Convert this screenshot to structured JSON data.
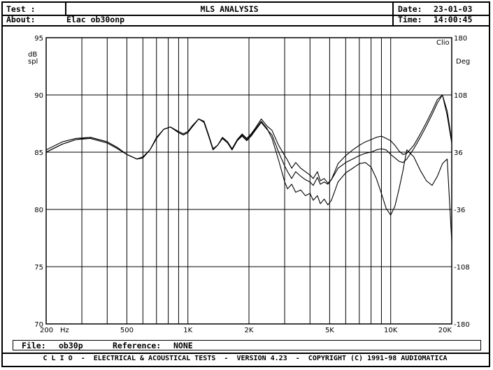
{
  "header": {
    "test_label": "Test :",
    "title": "MLS ANALYSIS",
    "date_label": "Date:",
    "date_value": "23-01-03",
    "about_label": "About:",
    "about_value": "Elac ob30onp",
    "time_label": "Time:",
    "time_value": "14:00:45"
  },
  "file_bar": {
    "file_label": "File:",
    "file_value": "ob30p",
    "reference_label": "Reference:",
    "reference_value": "NONE"
  },
  "footer": {
    "brand": "C L I O",
    "text": "-  ELECTRICAL & ACOUSTICAL TESTS  -  VERSION 4.23  -  COPYRIGHT (C) 1991-98 AUDIOMATICA"
  },
  "chart_data": {
    "type": "line",
    "title": "",
    "brand_mark": "Clio",
    "xlabel": "Hz",
    "ylabel": "dB spl",
    "y2label": "Deg",
    "xscale": "log",
    "xlim": [
      200,
      20000
    ],
    "ylim": [
      70,
      95
    ],
    "y2lim": [
      -180,
      180
    ],
    "x_ticks": [
      {
        "value": 200,
        "label": "200"
      },
      {
        "value": 500,
        "label": "500"
      },
      {
        "value": 1000,
        "label": "1K"
      },
      {
        "value": 2000,
        "label": "2K"
      },
      {
        "value": 5000,
        "label": "5K"
      },
      {
        "value": 10000,
        "label": "10K"
      },
      {
        "value": 20000,
        "label": "20K"
      }
    ],
    "x_gridlines": [
      300,
      400,
      500,
      600,
      700,
      800,
      900,
      1000,
      2000,
      3000,
      4000,
      5000,
      6000,
      7000,
      8000,
      9000,
      10000,
      20000
    ],
    "y_ticks": [
      70,
      75,
      80,
      85,
      90,
      95
    ],
    "y2_ticks": [
      -180,
      -108,
      -36,
      36,
      108,
      180
    ],
    "grid": true,
    "series": [
      {
        "x": [
          200,
          240,
          280,
          330,
          400,
          450,
          500,
          560,
          600,
          650,
          700,
          760,
          820,
          900,
          950,
          1000,
          1050,
          1130,
          1200,
          1260,
          1330,
          1400,
          1480,
          1570,
          1650,
          1750,
          1850,
          1950,
          2050,
          2150,
          2300,
          2450,
          2600,
          2800,
          3000,
          3100,
          3250,
          3400,
          3600,
          3800,
          4000,
          4150,
          4350,
          4500,
          4700,
          4900,
          5100,
          5300,
          5500,
          6000,
          6500,
          7000,
          7500,
          8000,
          8500,
          9000,
          9500,
          10000,
          10500,
          11000,
          11500,
          12000,
          13000,
          14000,
          15000,
          16000,
          17000,
          18000,
          19000,
          20000
        ],
        "values": [
          85.2,
          85.9,
          86.2,
          86.3,
          85.9,
          85.4,
          84.8,
          84.4,
          84.5,
          85.2,
          86.3,
          87.0,
          87.2,
          86.8,
          86.6,
          86.8,
          87.3,
          87.9,
          87.7,
          86.6,
          85.3,
          85.6,
          86.3,
          85.9,
          85.3,
          86.1,
          86.6,
          86.2,
          86.6,
          87.1,
          87.9,
          87.3,
          86.9,
          85.6,
          84.7,
          84.3,
          83.6,
          84.1,
          83.6,
          83.3,
          83.0,
          82.7,
          83.3,
          82.5,
          82.7,
          82.3,
          82.6,
          83.3,
          84.0,
          84.7,
          85.2,
          85.6,
          85.9,
          86.1,
          86.3,
          86.4,
          86.2,
          86.0,
          85.6,
          85.1,
          84.8,
          84.9,
          85.6,
          86.6,
          87.6,
          88.6,
          89.6,
          90.0,
          88.2,
          85.8
        ]
      },
      {
        "x": [
          200,
          240,
          280,
          330,
          400,
          450,
          500,
          560,
          600,
          650,
          700,
          760,
          820,
          900,
          950,
          1000,
          1050,
          1130,
          1200,
          1260,
          1330,
          1400,
          1480,
          1570,
          1650,
          1750,
          1850,
          1950,
          2050,
          2150,
          2300,
          2450,
          2600,
          2800,
          3000,
          3100,
          3250,
          3400,
          3600,
          3800,
          4000,
          4150,
          4350,
          4500,
          4700,
          4900,
          5100,
          5300,
          5500,
          6000,
          6500,
          7000,
          7500,
          8000,
          8500,
          9000,
          9500,
          10000,
          10500,
          11000,
          11500,
          12000,
          13000,
          14000,
          15000,
          16000,
          17000,
          18000,
          19000,
          20000
        ],
        "values": [
          85.0,
          85.7,
          86.1,
          86.2,
          85.8,
          85.3,
          84.8,
          84.4,
          84.5,
          85.2,
          86.2,
          87.0,
          87.2,
          86.7,
          86.5,
          86.7,
          87.2,
          87.9,
          87.6,
          86.5,
          85.2,
          85.6,
          86.2,
          85.8,
          85.2,
          86.0,
          86.4,
          86.0,
          86.4,
          86.9,
          87.6,
          87.0,
          86.5,
          85.0,
          83.8,
          83.3,
          82.7,
          83.3,
          82.9,
          82.6,
          82.4,
          82.1,
          82.8,
          82.2,
          82.4,
          82.2,
          82.6,
          83.1,
          83.6,
          84.1,
          84.4,
          84.7,
          84.9,
          85.0,
          85.2,
          85.3,
          85.2,
          84.8,
          84.5,
          84.2,
          84.1,
          84.4,
          85.3,
          86.3,
          87.3,
          88.3,
          89.3,
          90.0,
          88.6,
          86.0
        ]
      },
      {
        "x": [
          200,
          240,
          280,
          330,
          400,
          450,
          500,
          560,
          600,
          650,
          700,
          760,
          820,
          900,
          950,
          1000,
          1050,
          1130,
          1200,
          1260,
          1330,
          1400,
          1480,
          1570,
          1650,
          1750,
          1850,
          1950,
          2050,
          2150,
          2300,
          2450,
          2600,
          2800,
          3000,
          3100,
          3250,
          3400,
          3600,
          3800,
          4000,
          4150,
          4350,
          4500,
          4700,
          4900,
          5100,
          5300,
          5500,
          6000,
          6500,
          7000,
          7500,
          8000,
          8500,
          9000,
          9500,
          10000,
          10500,
          11000,
          11500,
          12000,
          13000,
          14000,
          15000,
          16000,
          17000,
          18000,
          19000,
          20000
        ],
        "values": [
          85.0,
          85.7,
          86.1,
          86.3,
          85.9,
          85.4,
          84.8,
          84.4,
          84.6,
          85.2,
          86.2,
          87.0,
          87.2,
          86.8,
          86.6,
          86.8,
          87.2,
          87.9,
          87.7,
          86.6,
          85.3,
          85.6,
          86.2,
          85.9,
          85.2,
          86.0,
          86.5,
          86.1,
          86.5,
          87.0,
          87.7,
          87.1,
          86.2,
          84.3,
          82.4,
          81.8,
          82.2,
          81.5,
          81.7,
          81.2,
          81.4,
          80.8,
          81.2,
          80.5,
          80.9,
          80.4,
          80.8,
          81.6,
          82.4,
          83.2,
          83.6,
          84.0,
          84.1,
          83.7,
          82.7,
          81.4,
          80.1,
          79.5,
          80.3,
          81.8,
          83.4,
          85.2,
          84.6,
          83.4,
          82.5,
          82.1,
          82.9,
          84.0,
          84.4,
          77.2
        ]
      }
    ]
  }
}
